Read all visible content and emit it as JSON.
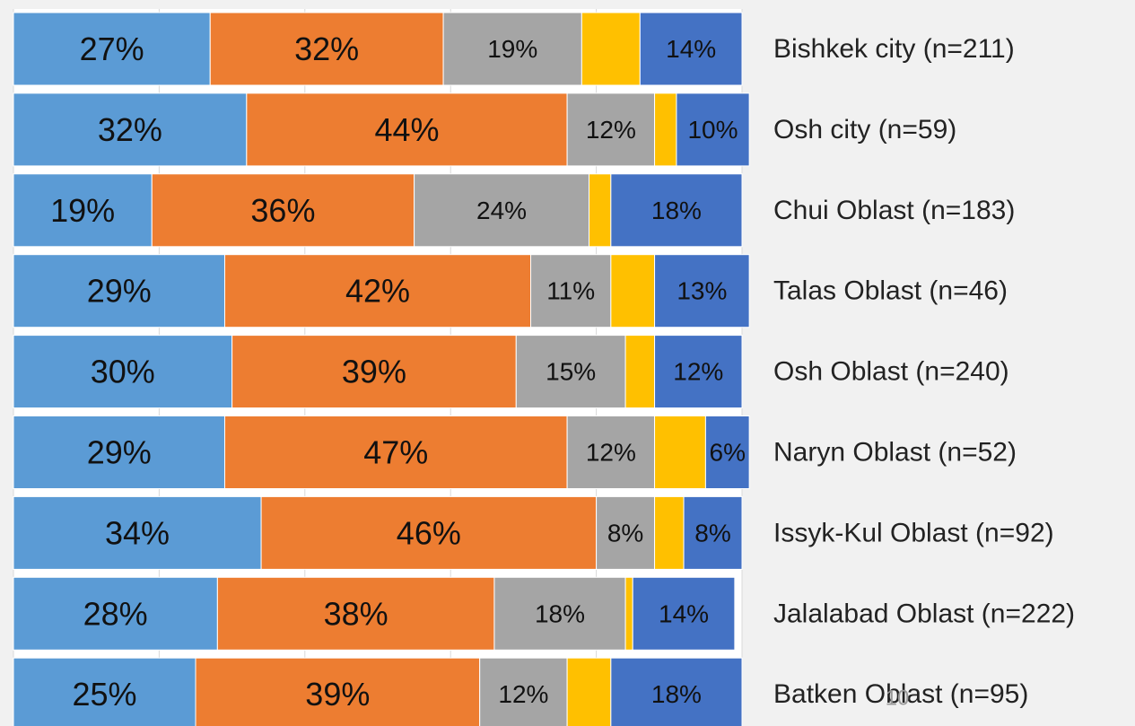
{
  "chart_data": {
    "type": "stacked-barh",
    "categories": [
      "Bishkek city (n=211)",
      "Osh city (n=59)",
      "Chui Oblast (n=183)",
      "Talas Oblast (n=46)",
      "Osh Oblast (n=240)",
      "Naryn Oblast (n=52)",
      "Issyk-Kul Oblast (n=92)",
      "Jalalabad Oblast (n=222)",
      "Batken Oblast (n=95)"
    ],
    "series": [
      {
        "color": "#5b9bd5",
        "values": [
          27,
          32,
          19,
          29,
          30,
          29,
          34,
          28,
          25
        ],
        "value_labels": [
          "27%",
          "32%",
          "19%",
          "29%",
          "30%",
          "29%",
          "34%",
          "28%",
          "25%"
        ]
      },
      {
        "color": "#ed7d31",
        "values": [
          32,
          44,
          36,
          42,
          39,
          47,
          46,
          38,
          39
        ],
        "value_labels": [
          "32%",
          "44%",
          "36%",
          "42%",
          "39%",
          "47%",
          "46%",
          "38%",
          "39%"
        ]
      },
      {
        "color": "#a5a5a5",
        "values": [
          19,
          12,
          24,
          11,
          15,
          12,
          8,
          18,
          12
        ],
        "value_labels": [
          "19%",
          "12%",
          "24%",
          "11%",
          "15%",
          "12%",
          "8%",
          "18%",
          "12%"
        ]
      },
      {
        "color": "#ffc000",
        "values": [
          8,
          3,
          3,
          6,
          4,
          7,
          4,
          1,
          6
        ]
      },
      {
        "color": "#4472c4",
        "values": [
          14,
          10,
          18,
          13,
          12,
          6,
          8,
          14,
          18
        ],
        "value_labels": [
          "14%",
          "10%",
          "18%",
          "13%",
          "12%",
          "6%",
          "8%",
          "14%",
          "18%"
        ]
      }
    ],
    "xlim": [
      0,
      100
    ],
    "xticks": [
      0,
      20,
      40,
      60,
      80,
      100
    ],
    "grid": true
  },
  "page_number": "10"
}
